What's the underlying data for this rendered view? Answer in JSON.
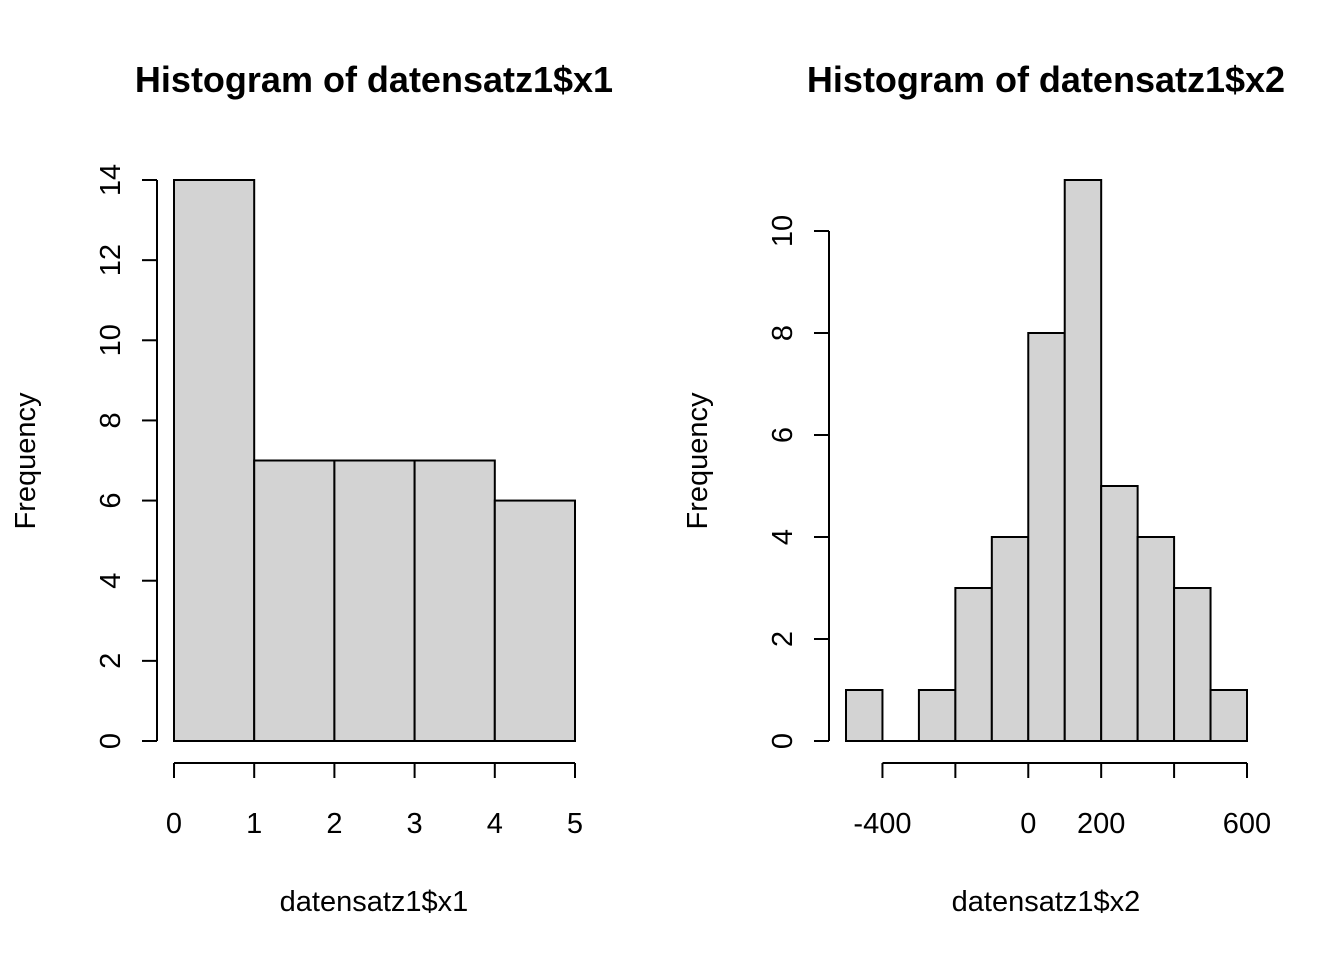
{
  "chart_data": [
    {
      "type": "bar",
      "title": "Histogram of datensatz1$x1",
      "xlabel": "datensatz1$x1",
      "ylabel": "Frequency",
      "bins": [
        [
          0,
          1
        ],
        [
          1,
          2
        ],
        [
          2,
          3
        ],
        [
          3,
          4
        ],
        [
          4,
          5
        ]
      ],
      "values": [
        14,
        7,
        7,
        7,
        6
      ],
      "xlim": [
        0,
        5
      ],
      "ylim": [
        0,
        14
      ],
      "x_ticks": [
        0,
        1,
        2,
        3,
        4,
        5
      ],
      "x_tick_labels": [
        "0",
        "1",
        "2",
        "3",
        "4",
        "5"
      ],
      "y_ticks": [
        0,
        2,
        4,
        6,
        8,
        10,
        12,
        14
      ],
      "y_tick_labels": [
        "0",
        "2",
        "4",
        "6",
        "8",
        "10",
        "12",
        "14"
      ],
      "grid": false,
      "colors": {
        "bar_fill": "#d3d3d3",
        "bar_stroke": "#000000"
      }
    },
    {
      "type": "bar",
      "title": "Histogram of datensatz1$x2",
      "xlabel": "datensatz1$x2",
      "ylabel": "Frequency",
      "bins": [
        [
          -500,
          -400
        ],
        [
          -400,
          -300
        ],
        [
          -300,
          -200
        ],
        [
          -200,
          -100
        ],
        [
          -100,
          0
        ],
        [
          0,
          100
        ],
        [
          100,
          200
        ],
        [
          200,
          300
        ],
        [
          300,
          400
        ],
        [
          400,
          500
        ],
        [
          500,
          600
        ]
      ],
      "values": [
        1,
        0,
        1,
        3,
        4,
        8,
        11,
        5,
        4,
        3,
        1
      ],
      "xlim": [
        -500,
        600
      ],
      "ylim": [
        0,
        11
      ],
      "x_ticks": [
        -400,
        -200,
        0,
        200,
        400,
        600
      ],
      "x_tick_labels": [
        "-400",
        "",
        "0",
        "200",
        "",
        "600"
      ],
      "y_ticks": [
        0,
        2,
        4,
        6,
        8,
        10
      ],
      "y_tick_labels": [
        "0",
        "2",
        "4",
        "6",
        "8",
        "10"
      ],
      "grid": false,
      "colors": {
        "bar_fill": "#d3d3d3",
        "bar_stroke": "#000000"
      }
    }
  ]
}
